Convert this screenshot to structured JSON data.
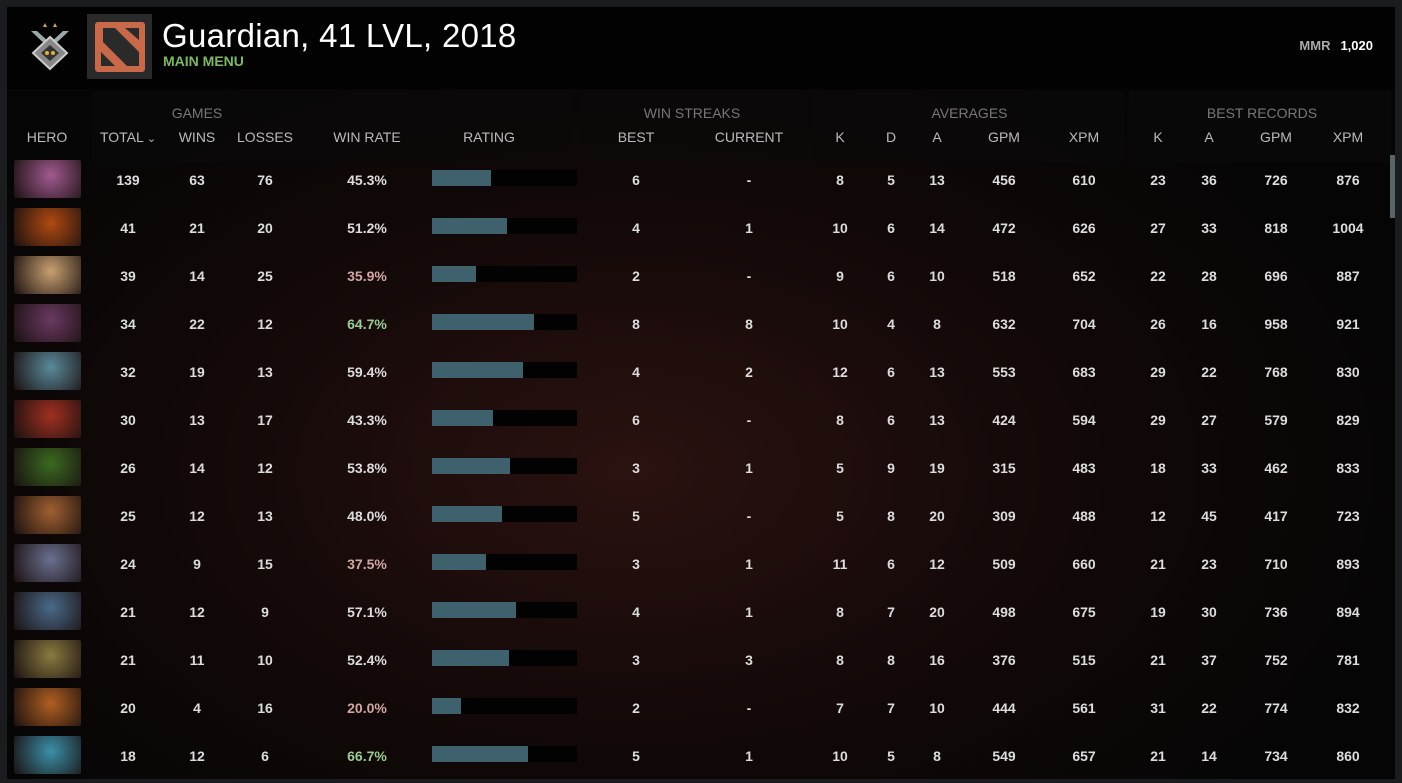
{
  "header": {
    "title": "Guardian, 41 LVL, 2018",
    "subtitle": "MAIN MENU",
    "mmr_label": "MMR",
    "mmr_value": "1,020",
    "rank_icon": "guardian-medal-icon",
    "logo_icon": "dota-logo-icon"
  },
  "groups": {
    "games": "GAMES",
    "win_streaks": "WIN STREAKS",
    "averages": "AVERAGES",
    "best_records": "BEST RECORDS"
  },
  "columns": [
    "HERO",
    "TOTAL",
    "WINS",
    "LOSSES",
    "WIN RATE",
    "RATING",
    "BEST",
    "CURRENT",
    "K",
    "D",
    "A",
    "GPM",
    "XPM",
    "K",
    "A",
    "GPM",
    "XPM"
  ],
  "sort_indicator": "chevron-down-icon",
  "colors": {
    "bar": "#3f606d",
    "low_winrate": "#d2a7a3",
    "high_winrate": "#9ccb96",
    "subtitle": "#7cb865"
  },
  "rows": [
    {
      "hero": "#a05a90",
      "total": "139",
      "wins": "63",
      "losses": "76",
      "winrate": "45.3%",
      "rating": 0.41,
      "best": "6",
      "current": "-",
      "k": "8",
      "d": "5",
      "a": "13",
      "gpm": "456",
      "xpm": "610",
      "bk": "23",
      "ba": "36",
      "bgpm": "726",
      "bxpm": "876"
    },
    {
      "hero": "#b04a10",
      "total": "41",
      "wins": "21",
      "losses": "20",
      "winrate": "51.2%",
      "rating": 0.52,
      "best": "4",
      "current": "1",
      "k": "10",
      "d": "6",
      "a": "14",
      "gpm": "472",
      "xpm": "626",
      "bk": "27",
      "ba": "33",
      "bgpm": "818",
      "bxpm": "1004"
    },
    {
      "hero": "#c8a070",
      "total": "39",
      "wins": "14",
      "losses": "25",
      "winrate": "35.9%",
      "rating": 0.3,
      "best": "2",
      "current": "-",
      "k": "9",
      "d": "6",
      "a": "10",
      "gpm": "518",
      "xpm": "652",
      "bk": "22",
      "ba": "28",
      "bgpm": "696",
      "bxpm": "887"
    },
    {
      "hero": "#6a3a60",
      "total": "34",
      "wins": "22",
      "losses": "12",
      "winrate": "64.7%",
      "rating": 0.7,
      "best": "8",
      "current": "8",
      "k": "10",
      "d": "4",
      "a": "8",
      "gpm": "632",
      "xpm": "704",
      "bk": "26",
      "ba": "16",
      "bgpm": "958",
      "bxpm": "921"
    },
    {
      "hero": "#5a8a9a",
      "total": "32",
      "wins": "19",
      "losses": "13",
      "winrate": "59.4%",
      "rating": 0.63,
      "best": "4",
      "current": "2",
      "k": "12",
      "d": "6",
      "a": "13",
      "gpm": "553",
      "xpm": "683",
      "bk": "29",
      "ba": "22",
      "bgpm": "768",
      "bxpm": "830"
    },
    {
      "hero": "#a03020",
      "total": "30",
      "wins": "13",
      "losses": "17",
      "winrate": "43.3%",
      "rating": 0.42,
      "best": "6",
      "current": "-",
      "k": "8",
      "d": "6",
      "a": "13",
      "gpm": "424",
      "xpm": "594",
      "bk": "29",
      "ba": "27",
      "bgpm": "579",
      "bxpm": "829"
    },
    {
      "hero": "#3a6a20",
      "total": "26",
      "wins": "14",
      "losses": "12",
      "winrate": "53.8%",
      "rating": 0.54,
      "best": "3",
      "current": "1",
      "k": "5",
      "d": "9",
      "a": "19",
      "gpm": "315",
      "xpm": "483",
      "bk": "18",
      "ba": "33",
      "bgpm": "462",
      "bxpm": "833"
    },
    {
      "hero": "#a06030",
      "total": "25",
      "wins": "12",
      "losses": "13",
      "winrate": "48.0%",
      "rating": 0.48,
      "best": "5",
      "current": "-",
      "k": "5",
      "d": "8",
      "a": "20",
      "gpm": "309",
      "xpm": "488",
      "bk": "12",
      "ba": "45",
      "bgpm": "417",
      "bxpm": "723"
    },
    {
      "hero": "#6a7090",
      "total": "24",
      "wins": "9",
      "losses": "15",
      "winrate": "37.5%",
      "rating": 0.37,
      "best": "3",
      "current": "1",
      "k": "11",
      "d": "6",
      "a": "12",
      "gpm": "509",
      "xpm": "660",
      "bk": "21",
      "ba": "23",
      "bgpm": "710",
      "bxpm": "893"
    },
    {
      "hero": "#4a6a8a",
      "total": "21",
      "wins": "12",
      "losses": "9",
      "winrate": "57.1%",
      "rating": 0.58,
      "best": "4",
      "current": "1",
      "k": "8",
      "d": "7",
      "a": "20",
      "gpm": "498",
      "xpm": "675",
      "bk": "19",
      "ba": "30",
      "bgpm": "736",
      "bxpm": "894"
    },
    {
      "hero": "#8a7a40",
      "total": "21",
      "wins": "11",
      "losses": "10",
      "winrate": "52.4%",
      "rating": 0.53,
      "best": "3",
      "current": "3",
      "k": "8",
      "d": "8",
      "a": "16",
      "gpm": "376",
      "xpm": "515",
      "bk": "21",
      "ba": "37",
      "bgpm": "752",
      "bxpm": "781"
    },
    {
      "hero": "#b06020",
      "total": "20",
      "wins": "4",
      "losses": "16",
      "winrate": "20.0%",
      "rating": 0.2,
      "best": "2",
      "current": "-",
      "k": "7",
      "d": "7",
      "a": "10",
      "gpm": "444",
      "xpm": "561",
      "bk": "31",
      "ba": "22",
      "bgpm": "774",
      "bxpm": "832"
    },
    {
      "hero": "#3a90a8",
      "total": "18",
      "wins": "12",
      "losses": "6",
      "winrate": "66.7%",
      "rating": 0.66,
      "best": "5",
      "current": "1",
      "k": "10",
      "d": "5",
      "a": "8",
      "gpm": "549",
      "xpm": "657",
      "bk": "21",
      "ba": "14",
      "bgpm": "734",
      "bxpm": "860"
    }
  ]
}
